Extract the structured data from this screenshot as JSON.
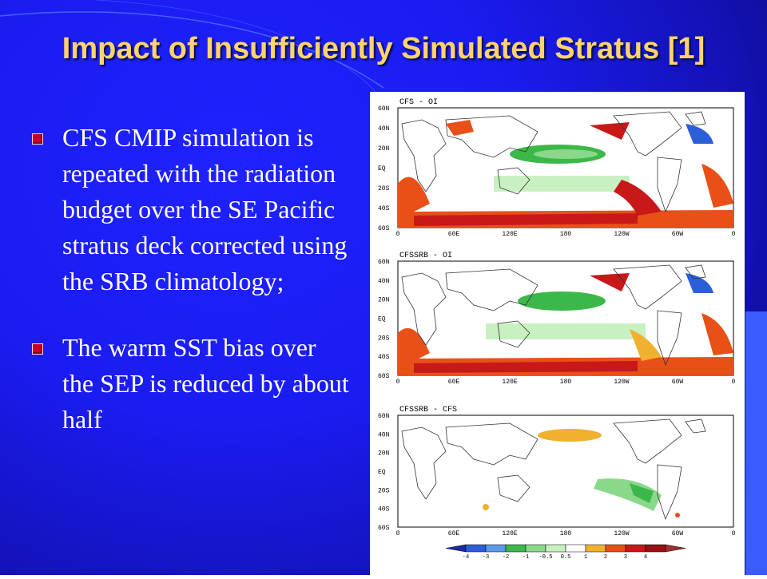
{
  "slide": {
    "title": "Impact of Insufficiently Simulated Stratus [1]",
    "bullets": [
      "CFS CMIP simulation is repeated with the radiation budget over the SE Pacific stratus deck corrected using the SRB climatology;",
      "The warm SST bias over the SEP is reduced by about half"
    ],
    "colors": {
      "title": "#ffd36e",
      "background": "#1a1cf0",
      "bullet_marker": "#c8002a"
    }
  },
  "figure": {
    "panels": [
      {
        "title": "CFS - OI"
      },
      {
        "title": "CFSSRB - OI"
      },
      {
        "title": "CFSSRB - CFS"
      }
    ],
    "lat_ticks": [
      "60N",
      "40N",
      "20N",
      "EQ",
      "20S",
      "40S",
      "60S"
    ],
    "lon_ticks": [
      "0",
      "60E",
      "120E",
      "180",
      "120W",
      "60W",
      "0"
    ],
    "colorbar": {
      "labels": [
        "-4",
        "-3",
        "-2",
        "-1",
        "-0.5",
        "0.5",
        "1",
        "2",
        "3",
        "4"
      ],
      "colors": [
        "#1a2aa8",
        "#2a5fd8",
        "#5a9ae8",
        "#3cb84a",
        "#8ad88a",
        "#c8f0c0",
        "#ffffff",
        "#f0b030",
        "#e85018",
        "#c81818",
        "#981010",
        "#a03030"
      ]
    }
  }
}
